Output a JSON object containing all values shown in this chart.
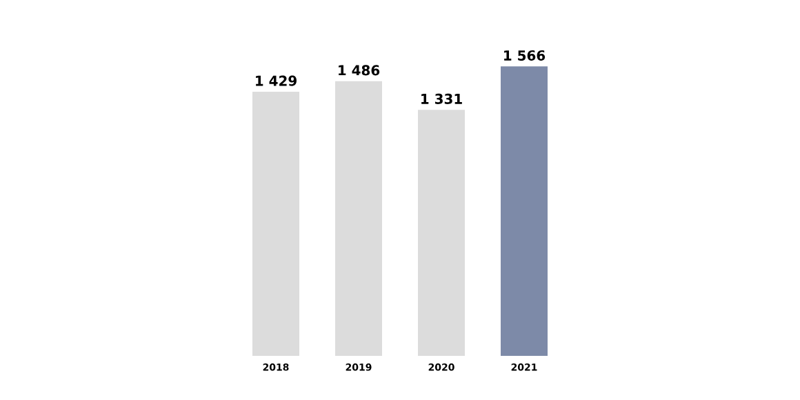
{
  "chart_data": {
    "type": "bar",
    "categories": [
      "2018",
      "2019",
      "2020",
      "2021"
    ],
    "values": [
      1429,
      1486,
      1331,
      1566
    ],
    "value_labels": [
      "1 429",
      "1 486",
      "1 331",
      "1 566"
    ],
    "colors": [
      "#dcdcdc",
      "#dcdcdc",
      "#dcdcdc",
      "#7d8aa8"
    ]
  }
}
